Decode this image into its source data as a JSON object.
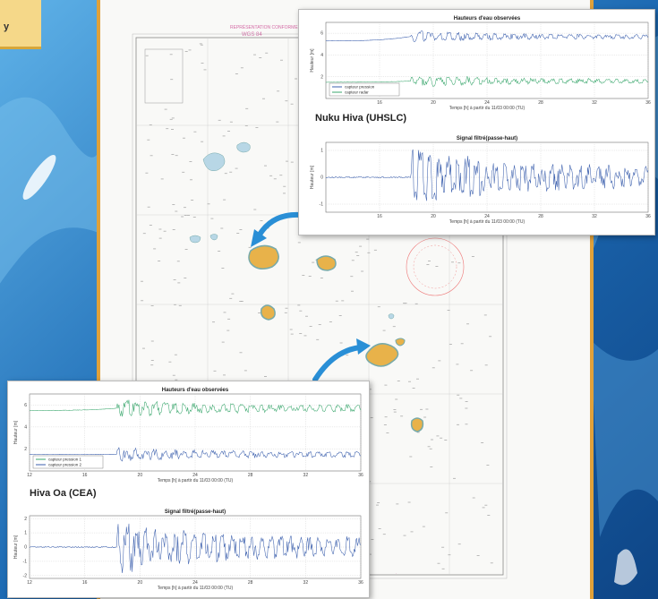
{
  "corner_label": "y",
  "map": {
    "datum_text": "WGS 84",
    "header_small": "REPRÉSENTATION CONFORME"
  },
  "colors": {
    "green": "#3aa76d",
    "blue": "#3b5fad",
    "arrow": "#2a8fd6",
    "accent": "#e0a13a"
  },
  "chart_data": [
    {
      "panel": "nuku-hiva",
      "station": "Nuku Hiva (UHSLC)",
      "charts": [
        {
          "type": "line",
          "title": "Hauteurs d'eau observées",
          "xlabel": "Temps  [h]  à partir du 11/03 00:00 (TU)",
          "ylabel": "Hauteur  [m]",
          "xlim": [
            12,
            36
          ],
          "ylim": [
            0,
            7
          ],
          "xticks": [
            16,
            20,
            24,
            28,
            32,
            36
          ],
          "yticks": [
            2,
            4,
            6
          ],
          "legend": "bottom-left",
          "series": [
            {
              "name": "capteur pression",
              "color": "#3b5fad",
              "base": 5.7,
              "pre_base": 5.3,
              "amp": 0.6
            },
            {
              "name": "capteur radar",
              "color": "#3aa76d",
              "base": 1.6,
              "pre_base": 1.5,
              "amp": 0.6
            }
          ],
          "onset": 18.3
        },
        {
          "type": "line",
          "title": "Signal filtré(passe-haut)",
          "xlabel": "Temps  [h]  à partir du 11/03 00:00 (TU)",
          "ylabel": "Hauteur  [m]",
          "xlim": [
            12,
            36
          ],
          "ylim": [
            -1.3,
            1.3
          ],
          "xticks": [
            16,
            20,
            24,
            28,
            32,
            36
          ],
          "yticks": [
            -1,
            0,
            1
          ],
          "series": [
            {
              "name": "",
              "color": "#3b5fad",
              "base": 0,
              "pre_base": 0,
              "amp": 1.2
            }
          ],
          "onset": 18.3
        }
      ]
    },
    {
      "panel": "hiva-oa",
      "station": "Hiva Oa (CEA)",
      "charts": [
        {
          "type": "line",
          "title": "Hauteurs d'eau observées",
          "xlabel": "Temps  [h]  à partir du 11/03 00:00 (TU)",
          "ylabel": "Hauteur  [m]",
          "xlim": [
            12,
            36
          ],
          "ylim": [
            0,
            7
          ],
          "xticks": [
            12,
            16,
            20,
            24,
            28,
            32,
            36
          ],
          "yticks": [
            2,
            4,
            6
          ],
          "legend": "bottom-left",
          "series": [
            {
              "name": "capteur pression 1",
              "color": "#3aa76d",
              "base": 5.7,
              "pre_base": 5.5,
              "amp": 0.9
            },
            {
              "name": "capteur pression 2",
              "color": "#3b5fad",
              "base": 1.5,
              "pre_base": 1.5,
              "amp": 0.7
            }
          ],
          "onset": 18.3
        },
        {
          "type": "line",
          "title": "Signal filtré(passe-haut)",
          "xlabel": "Temps  [h]  à partir du 11/03 00:00 (TU)",
          "ylabel": "Hauteur  [m]",
          "xlim": [
            12,
            36
          ],
          "ylim": [
            -2.2,
            2.2
          ],
          "xticks": [
            12,
            16,
            20,
            24,
            28,
            32,
            36
          ],
          "yticks": [
            -2,
            -1,
            0,
            1,
            2
          ],
          "series": [
            {
              "name": "",
              "color": "#3b5fad",
              "base": 0,
              "pre_base": 0,
              "amp": 2.0
            }
          ],
          "onset": 18.3
        }
      ]
    }
  ]
}
